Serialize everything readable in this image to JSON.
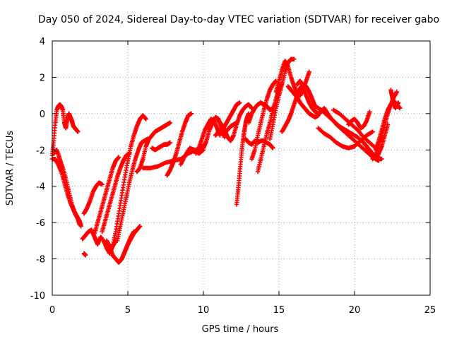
{
  "chart_data": {
    "type": "scatter",
    "title": "Day 050 of 2024, Sidereal Day-to-day VTEC variation (SDTVAR) for receiver gabo",
    "xlabel": "GPS time / hours",
    "ylabel": "SDTVAR / TECUs",
    "xlim": [
      0,
      25
    ],
    "ylim": [
      -10,
      4
    ],
    "xticks": [
      "0",
      "5",
      "10",
      "15",
      "20",
      "25"
    ],
    "yticks": [
      "4",
      "2",
      "0",
      "-2",
      "-4",
      "-6",
      "-8",
      "-10"
    ],
    "grid": true,
    "marker": "+",
    "color": "#ff0000",
    "series": [
      {
        "x": [
          0.0,
          0.1,
          0.2,
          0.3,
          0.4,
          0.5,
          0.6,
          0.7,
          0.8,
          0.9,
          1.0,
          1.1,
          1.2,
          1.3,
          1.4,
          1.5,
          1.6,
          1.7
        ],
        "y": [
          -2.3,
          -1.5,
          -0.5,
          0.2,
          0.4,
          0.5,
          0.4,
          0.2,
          -0.5,
          -0.8,
          -0.3,
          0.0,
          -0.2,
          -0.4,
          -0.7,
          -0.8,
          -0.9,
          -1.0
        ]
      },
      {
        "x": [
          0.1,
          0.3,
          0.5,
          0.7,
          0.9,
          1.1,
          1.3,
          1.5,
          1.7,
          1.8
        ],
        "y": [
          -2.2,
          -2.0,
          -2.5,
          -3.0,
          -3.6,
          -4.3,
          -5.0,
          -5.5,
          -5.8,
          -6.1
        ]
      },
      {
        "x": [
          0.0,
          0.2,
          0.4,
          0.6,
          0.8,
          1.0,
          1.2,
          1.4,
          1.6,
          1.8,
          1.9
        ],
        "y": [
          -2.5,
          -2.5,
          -2.8,
          -3.2,
          -3.8,
          -4.4,
          -4.9,
          -5.3,
          -5.6,
          -5.9,
          -6.2
        ]
      },
      {
        "x": [
          2.1,
          2.2
        ],
        "y": [
          -7.7,
          -7.8
        ]
      },
      {
        "x": [
          2.0,
          2.2,
          2.4,
          2.6,
          2.8,
          3.0,
          3.2,
          3.4,
          3.6,
          3.8,
          4.0,
          4.2
        ],
        "y": [
          -6.9,
          -6.7,
          -6.5,
          -6.4,
          -6.8,
          -7.2,
          -6.8,
          -7.0,
          -7.4,
          -7.7,
          -7.3,
          -7.0
        ]
      },
      {
        "x": [
          2.1,
          2.3,
          2.5,
          2.7,
          2.9,
          3.1,
          3.3
        ],
        "y": [
          -5.5,
          -5.2,
          -4.8,
          -4.3,
          -4.0,
          -3.8,
          -3.9
        ]
      },
      {
        "x": [
          2.8,
          3.0,
          3.2,
          3.4,
          3.6,
          3.8,
          4.0,
          4.2,
          4.4
        ],
        "y": [
          -6.6,
          -6.0,
          -5.4,
          -4.8,
          -4.2,
          -3.6,
          -3.0,
          -2.6,
          -2.4
        ]
      },
      {
        "x": [
          3.3,
          3.5,
          3.7,
          3.9,
          4.1,
          4.3,
          4.5,
          4.7,
          4.9,
          5.1
        ],
        "y": [
          -6.5,
          -5.9,
          -5.3,
          -4.7,
          -4.1,
          -3.5,
          -3.0,
          -2.6,
          -2.3,
          -2.2
        ]
      },
      {
        "x": [
          3.6,
          3.8,
          4.0,
          4.2,
          4.4,
          4.6,
          4.8,
          5.0,
          5.2,
          5.4
        ],
        "y": [
          -7.0,
          -7.3,
          -7.8,
          -8.0,
          -8.2,
          -8.0,
          -7.6,
          -7.2,
          -6.8,
          -6.5
        ]
      },
      {
        "x": [
          4.0,
          4.2,
          4.4,
          4.6,
          4.8,
          5.0,
          5.2,
          5.4,
          5.6,
          5.8,
          6.0,
          6.2
        ],
        "y": [
          -7.3,
          -6.5,
          -5.5,
          -4.5,
          -3.5,
          -2.6,
          -1.8,
          -1.2,
          -0.7,
          -0.3,
          -0.1,
          -0.3
        ]
      },
      {
        "x": [
          4.3,
          4.5,
          4.7,
          4.9,
          5.1,
          5.3,
          5.5,
          5.7,
          5.9,
          6.1,
          6.3
        ],
        "y": [
          -7.0,
          -6.2,
          -5.4,
          -4.6,
          -3.8,
          -3.1,
          -2.5,
          -2.0,
          -1.6,
          -1.5,
          -1.4
        ]
      },
      {
        "x": [
          4.6,
          4.8,
          5.0,
          5.2,
          5.4,
          5.6,
          5.8
        ],
        "y": [
          -8.0,
          -7.6,
          -7.2,
          -6.9,
          -6.6,
          -6.4,
          -6.2
        ]
      },
      {
        "x": [
          5.6,
          5.8,
          6.0,
          6.2,
          6.4,
          6.6,
          6.8,
          7.0,
          7.2,
          7.4,
          7.6,
          7.8
        ],
        "y": [
          -3.2,
          -3.0,
          -2.5,
          -1.8,
          -1.4,
          -1.2,
          -1.0,
          -0.9,
          -0.8,
          -0.7,
          -0.6,
          -0.5
        ]
      },
      {
        "x": [
          6.0,
          6.5,
          7.0,
          7.5,
          8.0,
          8.5,
          9.0,
          9.5,
          10.0
        ],
        "y": [
          -3.0,
          -3.0,
          -2.9,
          -2.7,
          -2.6,
          -2.5,
          -2.2,
          -2.0,
          -1.8
        ]
      },
      {
        "x": [
          6.6,
          6.8,
          7.0,
          7.2,
          7.4,
          7.6,
          7.8
        ],
        "y": [
          -1.9,
          -2.0,
          -1.9,
          -1.8,
          -1.7,
          -1.7,
          -1.6
        ]
      },
      {
        "x": [
          7.6,
          7.8,
          8.0,
          8.2,
          8.4,
          8.6,
          8.8,
          9.0,
          9.2
        ],
        "y": [
          -3.4,
          -3.1,
          -2.7,
          -2.2,
          -1.6,
          -1.0,
          -0.5,
          -0.1,
          0.0
        ]
      },
      {
        "x": [
          8.5,
          8.8,
          9.1,
          9.4,
          9.7,
          10.0
        ],
        "y": [
          -2.8,
          -2.3,
          -1.9,
          -2.0,
          -2.2,
          -2.0
        ]
      },
      {
        "x": [
          9.5,
          9.7,
          9.9,
          10.1,
          10.3,
          10.5,
          10.7,
          10.9,
          11.1
        ],
        "y": [
          -2.2,
          -1.9,
          -1.4,
          -0.9,
          -0.6,
          -0.3,
          -0.4,
          -0.8,
          -1.2
        ]
      },
      {
        "x": [
          10.0,
          10.2,
          10.4,
          10.6,
          10.8,
          11.0,
          11.2,
          11.4
        ],
        "y": [
          -1.9,
          -1.5,
          -0.9,
          -0.5,
          -0.2,
          -0.3,
          -0.8,
          -1.3
        ]
      },
      {
        "x": [
          10.8,
          11.0,
          11.2,
          11.4,
          11.6,
          11.8,
          12.0,
          12.2,
          12.4
        ],
        "y": [
          -1.2,
          -1.0,
          -0.9,
          -0.7,
          -0.4,
          -0.1,
          0.2,
          0.5,
          0.6
        ]
      },
      {
        "x": [
          11.0,
          11.2,
          11.4,
          11.6,
          11.8,
          12.0,
          12.2,
          12.4,
          12.6,
          12.8,
          13.0,
          13.2
        ],
        "y": [
          -0.4,
          -0.6,
          -0.9,
          -1.3,
          -1.5,
          -1.2,
          -0.6,
          -0.1,
          0.2,
          0.4,
          0.5,
          0.3
        ]
      },
      {
        "x": [
          11.4,
          11.6,
          11.8,
          12.0,
          12.2
        ],
        "y": [
          -1.0,
          -0.9,
          -0.7,
          -0.6,
          -0.5
        ]
      },
      {
        "x": [
          12.2,
          12.3,
          12.4,
          12.5,
          12.6,
          12.7,
          12.8,
          12.9,
          13.0
        ],
        "y": [
          -5.0,
          -4.2,
          -3.3,
          -2.4,
          -1.6,
          -1.0,
          -0.5,
          -0.2,
          0.0
        ]
      },
      {
        "x": [
          12.8,
          13.0,
          13.2,
          13.4,
          13.6,
          13.8,
          14.0,
          14.2,
          14.4,
          14.6
        ],
        "y": [
          -1.4,
          -1.6,
          -1.7,
          -1.5,
          -1.6,
          -1.5,
          -1.5,
          -1.6,
          -1.7,
          -1.9
        ]
      },
      {
        "x": [
          13.0,
          13.2,
          13.4,
          13.6,
          13.8,
          14.0,
          14.2,
          14.4,
          14.6
        ],
        "y": [
          -0.5,
          0.0,
          0.3,
          0.5,
          0.6,
          0.5,
          0.4,
          0.2,
          0.3
        ]
      },
      {
        "x": [
          13.2,
          13.4,
          13.6,
          13.8,
          14.0,
          14.2,
          14.4,
          14.6,
          14.8
        ],
        "y": [
          -2.5,
          -2.0,
          -1.2,
          -0.5,
          0.2,
          0.8,
          1.3,
          1.6,
          1.8
        ]
      },
      {
        "x": [
          13.6,
          13.8,
          14.0,
          14.2,
          14.4,
          14.6,
          14.8,
          15.0,
          15.2
        ],
        "y": [
          -3.2,
          -2.5,
          -1.8,
          -1.1,
          -0.5,
          0.2,
          0.8,
          1.3,
          1.7
        ]
      },
      {
        "x": [
          14.4,
          14.6,
          14.8,
          15.0,
          15.2,
          15.4,
          15.6,
          15.8,
          16.0
        ],
        "y": [
          -1.4,
          -0.6,
          0.3,
          1.0,
          1.6,
          2.3,
          2.8,
          3.0,
          3.0
        ]
      },
      {
        "x": [
          14.8,
          15.0,
          15.2,
          15.4,
          15.6,
          15.8,
          16.0,
          16.2,
          16.4,
          16.6,
          16.8,
          17.0
        ],
        "y": [
          1.2,
          1.8,
          2.4,
          2.9,
          2.6,
          2.0,
          1.5,
          1.2,
          1.0,
          1.3,
          1.8,
          2.3
        ]
      },
      {
        "x": [
          15.2,
          15.4,
          15.6,
          15.8,
          16.0,
          16.2,
          16.4,
          16.6,
          16.8,
          17.0,
          17.2,
          17.4
        ],
        "y": [
          -1.0,
          -0.7,
          -0.4,
          0.0,
          0.5,
          1.0,
          1.4,
          1.6,
          1.5,
          1.2,
          0.8,
          0.4
        ]
      },
      {
        "x": [
          15.6,
          15.8,
          16.0,
          16.2,
          16.4,
          16.6,
          16.8,
          17.0,
          17.2,
          17.4,
          17.6
        ],
        "y": [
          1.5,
          1.3,
          1.1,
          0.9,
          0.6,
          0.4,
          0.2,
          0.0,
          -0.1,
          -0.2,
          -0.1
        ]
      },
      {
        "x": [
          16.2,
          16.4,
          16.6,
          16.8,
          17.0,
          17.2,
          17.4,
          17.6,
          17.8,
          18.0
        ],
        "y": [
          1.6,
          1.8,
          1.5,
          1.0,
          0.6,
          0.3,
          0.1,
          0.0,
          0.1,
          0.3
        ]
      },
      {
        "x": [
          17.4,
          17.8,
          18.2,
          18.6,
          19.0,
          19.4,
          19.8,
          20.2,
          20.6,
          21.0,
          21.4,
          21.8
        ],
        "y": [
          0.4,
          0.2,
          -0.1,
          -0.4,
          -0.7,
          -0.9,
          -1.1,
          -1.3,
          -1.6,
          -2.0,
          -2.4,
          -2.5
        ]
      },
      {
        "x": [
          17.6,
          18.0,
          18.4,
          18.8,
          19.2,
          19.6,
          20.0,
          20.4,
          20.8,
          21.2
        ],
        "y": [
          -0.8,
          -1.1,
          -1.3,
          -1.6,
          -1.8,
          -1.9,
          -1.8,
          -1.5,
          -1.2,
          -1.0
        ]
      },
      {
        "x": [
          18.0,
          18.4,
          18.8,
          19.2,
          19.6,
          20.0,
          20.4,
          20.8,
          21.2,
          21.6
        ],
        "y": [
          0.3,
          -0.2,
          -0.6,
          -0.9,
          -1.2,
          -1.5,
          -1.8,
          -2.1,
          -2.4,
          -2.6
        ]
      },
      {
        "x": [
          18.6,
          19.0,
          19.4,
          19.8,
          20.2,
          20.6,
          21.0,
          21.4
        ],
        "y": [
          0.2,
          0.0,
          -0.3,
          -0.6,
          -0.9,
          -1.3,
          -1.6,
          -1.9
        ]
      },
      {
        "x": [
          19.6,
          19.8,
          20.0,
          20.2,
          20.4,
          20.6,
          20.8,
          21.0
        ],
        "y": [
          -0.6,
          -0.4,
          -0.3,
          -0.5,
          -0.8,
          -0.7,
          -0.4,
          0.1
        ]
      },
      {
        "x": [
          20.6,
          20.8,
          21.0,
          21.2,
          21.4,
          21.6,
          21.8,
          22.0,
          22.2
        ],
        "y": [
          -1.6,
          -1.8,
          -2.1,
          -2.3,
          -2.5,
          -2.2,
          -1.8,
          -1.2,
          -0.6
        ]
      },
      {
        "x": [
          21.2,
          21.4,
          21.6,
          21.8,
          22.0,
          22.2,
          22.4,
          22.6,
          22.8
        ],
        "y": [
          -2.5,
          -2.3,
          -1.7,
          -1.2,
          -0.6,
          0.0,
          0.5,
          0.9,
          1.2
        ]
      },
      {
        "x": [
          21.4,
          21.6,
          21.8,
          22.0,
          22.2,
          22.4,
          22.6,
          22.8,
          23.0
        ],
        "y": [
          -2.0,
          -1.5,
          -0.9,
          -0.3,
          0.2,
          0.5,
          0.7,
          0.5,
          0.3
        ]
      },
      {
        "x": [
          22.4,
          22.5,
          22.6,
          22.7,
          22.8,
          22.9
        ],
        "y": [
          1.3,
          0.9,
          0.6,
          0.3,
          0.5,
          0.6
        ]
      }
    ]
  }
}
